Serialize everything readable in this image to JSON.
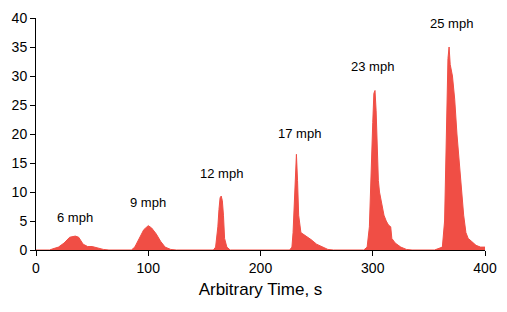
{
  "chart_data": {
    "type": "area",
    "x_label": "Arbitrary Time, s",
    "color": "#f04e45",
    "x": [
      0,
      12,
      15,
      20,
      25,
      30,
      35,
      38,
      42,
      46,
      50,
      55,
      60,
      65,
      85,
      88,
      92,
      96,
      100,
      103,
      107,
      111,
      115,
      120,
      125,
      158,
      160,
      162,
      163,
      164,
      165,
      166,
      167,
      168,
      170,
      173,
      226,
      228,
      229,
      230,
      231,
      232,
      233,
      234,
      236,
      240,
      245,
      250,
      255,
      260,
      265,
      292,
      295,
      297,
      298,
      299,
      300,
      301,
      302,
      303,
      304,
      305,
      306,
      308,
      310,
      312,
      314,
      316,
      317,
      320,
      325,
      330,
      335,
      355,
      362,
      364,
      365,
      366,
      367,
      368,
      369,
      371,
      373,
      375,
      377,
      379,
      381,
      383,
      385,
      388,
      392,
      396,
      400
    ],
    "values": [
      0,
      0,
      0.2,
      0.5,
      1.2,
      2.2,
      2.4,
      2.2,
      1.0,
      0.6,
      0.6,
      0.3,
      0.1,
      0,
      0,
      0.5,
      2.0,
      3.5,
      4.2,
      3.8,
      2.8,
      1.5,
      0.5,
      0.1,
      0,
      0,
      0.5,
      4,
      7,
      9,
      9.3,
      8.5,
      6,
      2,
      0.5,
      0,
      0,
      0.5,
      3,
      8,
      14,
      16.5,
      12,
      6,
      3,
      2.5,
      1.8,
      1.0,
      0.5,
      0.1,
      0,
      0,
      0.5,
      4,
      10,
      18,
      22,
      27,
      27.5,
      24,
      18,
      12,
      10,
      8,
      6,
      5,
      4.3,
      4.0,
      2,
      1.2,
      0.5,
      0.1,
      0,
      0,
      0.5,
      5,
      15,
      28,
      33,
      35,
      32,
      30,
      26,
      20,
      15,
      10,
      6,
      3,
      2,
      1.5,
      0.8,
      0.5,
      0.5
    ],
    "annotations": [
      {
        "text": "6 mph",
        "x": 35,
        "y": 4
      },
      {
        "text": "9 mph",
        "x": 100,
        "y": 6.5
      },
      {
        "text": "12 mph",
        "x": 165,
        "y": 11.5
      },
      {
        "text": "17 mph",
        "x": 235,
        "y": 18.5
      },
      {
        "text": "23 mph",
        "x": 300,
        "y": 30
      },
      {
        "text": "25 mph",
        "x": 370,
        "y": 37.5
      }
    ],
    "xlim": [
      0,
      400
    ],
    "xticks": [
      0,
      100,
      200,
      300,
      400
    ],
    "ylim": [
      0,
      40
    ],
    "yticks": [
      0,
      5,
      10,
      15,
      20,
      25,
      30,
      35,
      40
    ],
    "grid": false
  }
}
